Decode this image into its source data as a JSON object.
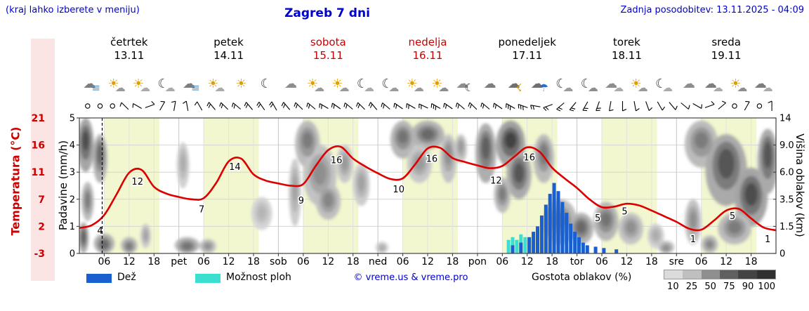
{
  "header": {
    "menu_hint": "(kraj lahko izberete v meniju)",
    "title": "Zagreb 7 dni",
    "updated": "Zadnja posodobitev: 13.11.2025 - 04:09"
  },
  "days": [
    {
      "name": "četrtek",
      "date": "13.11",
      "color": "#000000"
    },
    {
      "name": "petek",
      "date": "14.11",
      "color": "#000000"
    },
    {
      "name": "sobota",
      "date": "15.11",
      "color": "#cc0000"
    },
    {
      "name": "nedelja",
      "date": "16.11",
      "color": "#cc0000"
    },
    {
      "name": "ponedeljek",
      "date": "17.11",
      "color": "#000000"
    },
    {
      "name": "torek",
      "date": "18.11",
      "color": "#000000"
    },
    {
      "name": "sreda",
      "date": "19.11",
      "color": "#000000"
    }
  ],
  "axes": {
    "left_inner_label": "Padavine (mm/h)",
    "left_inner_ticks": [
      "0",
      "1",
      "2",
      "3",
      "4",
      "5"
    ],
    "left_outer_label": "Temperatura (°C)",
    "left_outer_ticks": [
      "-3",
      "2",
      "7",
      "11",
      "16",
      "21"
    ],
    "right_label": "Višina oblakov (km)",
    "right_ticks": [
      "0",
      "1.5",
      "3.5",
      "6.0",
      "9.0",
      "14"
    ],
    "x_hour_ticks": [
      "06",
      "12",
      "18"
    ],
    "x_day_labels": [
      "pet",
      "sob",
      "ned",
      "pon",
      "tor",
      "sre"
    ]
  },
  "legend": {
    "rain": "Dež",
    "showers": "Možnost ploh",
    "copyright": "© vreme.us & vreme.pro",
    "clouds": "Gostota oblakov (%)",
    "cloud_scale": [
      10,
      25,
      50,
      75,
      90,
      100
    ]
  },
  "colors": {
    "blue_text": "#0000cc",
    "red": "#cc0000",
    "curve": "#dd0000",
    "rain": "#1a5fd0",
    "showers": "#3adfd0",
    "day_band": "#f3f7cf",
    "temp_strip": "#fbe4e4",
    "grid": "#d4d4d4",
    "frame": "#444444"
  },
  "chart_data": {
    "type": "line",
    "title": "Zagreb 7 dni",
    "days_count": 7,
    "day_span_hours": 24,
    "daylight_band_hours": [
      6,
      19.3
    ],
    "now_line_hour": 5.5,
    "ylim_precip": [
      0,
      5
    ],
    "ylim_temp": [
      -3,
      21
    ],
    "right_axis_km_at_gridlines": [
      0,
      1.5,
      3.5,
      6.0,
      9.0,
      14
    ],
    "temperature": {
      "name": "Temperatura",
      "unit": "°C",
      "start_hour": 0,
      "step_hours": 3,
      "values": [
        1.5,
        2.0,
        3.8,
        7.5,
        11.3,
        11.8,
        8.8,
        7.6,
        7.0,
        6.6,
        6.8,
        9.5,
        13.3,
        13.8,
        11.0,
        9.9,
        9.4,
        9.0,
        9.3,
        12.5,
        15.3,
        15.9,
        13.8,
        12.4,
        11.2,
        10.2,
        10.3,
        12.8,
        15.6,
        15.7,
        13.9,
        13.2,
        12.6,
        12.1,
        12.5,
        14.2,
        15.8,
        15.0,
        12.2,
        10.3,
        8.6,
        6.6,
        5.2,
        5.3,
        5.8,
        5.5,
        4.6,
        3.6,
        2.6,
        1.4,
        1.2,
        2.8,
        4.6,
        4.9,
        3.2,
        1.6,
        1.1
      ]
    },
    "temperature_labels": [
      [
        "4",
        5,
        1.0
      ],
      [
        "12",
        14,
        9.7
      ],
      [
        "7",
        29.5,
        4.8
      ],
      [
        "14",
        37.5,
        12.3
      ],
      [
        "9",
        53.5,
        6.3
      ],
      [
        "16",
        62,
        13.5
      ],
      [
        "10",
        77,
        8.3
      ],
      [
        "16",
        85,
        13.7
      ],
      [
        "12",
        100.5,
        9.9
      ],
      [
        "16",
        108.5,
        14.0
      ],
      [
        "5",
        125,
        3.2
      ],
      [
        "5",
        131.5,
        4.4
      ],
      [
        "1",
        148,
        -0.5
      ],
      [
        "5",
        157.5,
        3.6
      ],
      [
        "1",
        166,
        -0.5
      ]
    ],
    "precipitation": {
      "unit": "mm/h",
      "rain": [
        [
          104,
          0.3
        ],
        [
          106,
          0.4
        ],
        [
          108,
          0.6
        ],
        [
          109,
          0.8
        ],
        [
          110,
          1.0
        ],
        [
          111,
          1.4
        ],
        [
          112,
          1.8
        ],
        [
          113,
          2.2
        ],
        [
          114,
          2.6
        ],
        [
          115,
          2.3
        ],
        [
          116,
          1.9
        ],
        [
          117,
          1.5
        ],
        [
          118,
          1.1
        ],
        [
          119,
          0.8
        ],
        [
          120,
          0.6
        ],
        [
          121,
          0.4
        ],
        [
          122,
          0.3
        ],
        [
          124,
          0.25
        ],
        [
          126,
          0.2
        ],
        [
          129,
          0.15
        ]
      ],
      "showers": [
        [
          103,
          0.5
        ],
        [
          104,
          0.6
        ],
        [
          105,
          0.5
        ],
        [
          106,
          0.7
        ],
        [
          107,
          0.6
        ],
        [
          108,
          0.5
        ]
      ]
    },
    "cloud_cover": {
      "unit": "altitude km, density 0-1",
      "regions": [
        [
          1.5,
          4,
          10,
          4,
          0.85
        ],
        [
          5,
          3.5,
          8,
          3,
          0.7
        ],
        [
          2,
          3,
          3.5,
          1.6,
          0.6
        ],
        [
          1,
          2.5,
          0.9,
          0.9,
          0.75
        ],
        [
          6,
          5,
          0.5,
          0.6,
          0.7
        ],
        [
          12,
          4,
          0.4,
          0.5,
          0.6
        ],
        [
          16,
          2.5,
          1,
          0.7,
          0.4
        ],
        [
          25,
          3,
          7,
          2.5,
          0.35
        ],
        [
          26,
          6,
          0.4,
          0.5,
          0.65
        ],
        [
          31,
          4,
          0.4,
          0.4,
          0.5
        ],
        [
          44,
          5,
          2.5,
          1.2,
          0.3
        ],
        [
          52,
          3,
          4.5,
          3,
          0.4
        ],
        [
          55,
          6,
          10,
          3.5,
          0.6
        ],
        [
          58,
          8,
          6,
          3,
          0.5
        ],
        [
          60,
          6,
          3.5,
          1.5,
          0.55
        ],
        [
          64,
          4,
          7,
          2,
          0.45
        ],
        [
          68,
          4,
          5,
          2,
          0.4
        ],
        [
          73,
          3,
          0.3,
          0.35,
          0.35
        ],
        [
          78,
          6,
          10.5,
          3,
          0.65
        ],
        [
          84,
          8,
          11,
          2.5,
          0.7
        ],
        [
          82,
          6,
          7,
          2,
          0.45
        ],
        [
          89,
          4,
          8,
          3,
          0.5
        ],
        [
          92,
          3,
          9,
          2,
          0.45
        ],
        [
          98,
          5,
          9,
          4,
          0.75
        ],
        [
          104,
          7,
          10,
          3.5,
          0.9
        ],
        [
          106,
          6,
          6,
          2.5,
          0.8
        ],
        [
          102,
          4,
          4,
          1.5,
          0.6
        ],
        [
          112,
          5,
          8,
          3,
          0.6
        ],
        [
          116,
          8,
          2,
          1.5,
          0.6
        ],
        [
          121,
          6,
          1.5,
          1,
          0.7
        ],
        [
          127,
          6,
          2,
          1.3,
          0.65
        ],
        [
          133,
          6,
          1.5,
          1,
          0.5
        ],
        [
          139,
          4,
          1,
          0.7,
          0.35
        ],
        [
          141.5,
          4,
          0.3,
          0.4,
          0.5
        ],
        [
          148,
          4,
          2,
          1.5,
          0.5
        ],
        [
          150,
          8,
          10,
          3.5,
          0.6
        ],
        [
          156,
          10,
          7,
          4,
          0.8
        ],
        [
          162,
          8,
          4,
          2.5,
          0.85
        ],
        [
          166,
          5,
          8,
          4,
          0.8
        ],
        [
          158,
          8,
          1.5,
          1,
          0.6
        ],
        [
          152,
          4,
          0.5,
          0.5,
          0.55
        ]
      ]
    },
    "icons": [
      [
        [
          "☁",
          "#7d7d7d"
        ],
        [
          "≡",
          "#4f8fc4"
        ]
      ],
      [
        [
          "☀",
          "#e09c00"
        ],
        [
          "☁",
          "#9a9a9a"
        ]
      ],
      [
        [
          "☀",
          "#e09c00"
        ],
        [
          "☁",
          "#ababab"
        ]
      ],
      [
        [
          "☾",
          "#3c3c3c"
        ],
        [
          "☁",
          "#ababab"
        ]
      ],
      [
        [
          "☁",
          "#7d7d7d"
        ],
        [
          "≡",
          "#4f8fc4"
        ]
      ],
      [
        [
          "☀",
          "#e09c00"
        ],
        [
          "☁",
          "#ababab"
        ]
      ],
      [
        [
          "☀",
          "#e09c00"
        ]
      ],
      [
        [
          "☾",
          "#3c3c3c"
        ]
      ],
      [
        [
          "☁",
          "#8d8d8d"
        ]
      ],
      [
        [
          "☀",
          "#e09c00"
        ],
        [
          "☁",
          "#9a9a9a"
        ]
      ],
      [
        [
          "☀",
          "#e09c00"
        ],
        [
          "☁",
          "#9a9a9a"
        ]
      ],
      [
        [
          "☾",
          "#3c3c3c"
        ],
        [
          "☁",
          "#ababab"
        ]
      ],
      [
        [
          "☾",
          "#3c3c3c"
        ],
        [
          "☁",
          "#9a9a9a"
        ]
      ],
      [
        [
          "☀",
          "#e09c00"
        ],
        [
          "☁",
          "#9a9a9a"
        ]
      ],
      [
        [
          "☀",
          "#e09c00"
        ],
        [
          "☁",
          "#8d8d8d"
        ]
      ],
      [
        [
          "☁",
          "#8d8d8d"
        ],
        [
          "☾",
          "#3c3c3c"
        ]
      ],
      [
        [
          "☁",
          "#7d7d7d"
        ]
      ],
      [
        [
          "☁",
          "#6f6f6f"
        ],
        [
          "☇",
          "#e09c00"
        ]
      ],
      [
        [
          "☁",
          "#6f6f6f"
        ],
        [
          "☂",
          "#2f6bc4"
        ]
      ],
      [
        [
          "☾",
          "#3c3c3c"
        ],
        [
          "☁",
          "#9a9a9a"
        ]
      ],
      [
        [
          "☾",
          "#3c3c3c"
        ],
        [
          "☁",
          "#8d8d8d"
        ]
      ],
      [
        [
          "☁",
          "#8d8d8d"
        ],
        [
          "☁",
          "#ababab"
        ]
      ],
      [
        [
          "☀",
          "#e09c00"
        ],
        [
          "☁",
          "#9a9a9a"
        ]
      ],
      [
        [
          "☾",
          "#3c3c3c"
        ],
        [
          "☁",
          "#ababab"
        ]
      ],
      [
        [
          "☁",
          "#8d8d8d"
        ]
      ],
      [
        [
          "☁",
          "#7d7d7d"
        ],
        [
          "☁",
          "#ababab"
        ]
      ],
      [
        [
          "☀",
          "#e09c00"
        ],
        [
          "☁",
          "#8d8d8d"
        ]
      ],
      [
        [
          "☁",
          "#7d7d7d"
        ],
        [
          "☁",
          "#ababab"
        ]
      ]
    ],
    "wind": [
      "calm",
      "calm",
      "calm",
      [
        135,
        1
      ],
      [
        150,
        1
      ],
      [
        20,
        1
      ],
      [
        60,
        1
      ],
      [
        80,
        1
      ],
      [
        100,
        1
      ],
      [
        120,
        1
      ],
      [
        130,
        2
      ],
      [
        135,
        2
      ],
      [
        140,
        2
      ],
      [
        130,
        2
      ],
      [
        125,
        2
      ],
      [
        120,
        2
      ],
      [
        130,
        2
      ],
      [
        135,
        2
      ],
      [
        140,
        2
      ],
      [
        150,
        2
      ],
      [
        145,
        2
      ],
      [
        140,
        2
      ],
      [
        135,
        2
      ],
      [
        130,
        2
      ],
      [
        140,
        2
      ],
      [
        145,
        2
      ],
      [
        150,
        2
      ],
      [
        155,
        2
      ],
      [
        150,
        3
      ],
      [
        145,
        2
      ],
      [
        140,
        2
      ],
      [
        135,
        2
      ],
      [
        140,
        2
      ],
      [
        145,
        2
      ],
      [
        150,
        3
      ],
      [
        160,
        3
      ],
      [
        170,
        2
      ],
      [
        200,
        2
      ],
      [
        220,
        2
      ],
      [
        230,
        2
      ],
      [
        240,
        2
      ],
      [
        250,
        2
      ],
      [
        260,
        1
      ],
      [
        270,
        1
      ],
      [
        280,
        1
      ],
      [
        290,
        1
      ],
      [
        300,
        1
      ],
      [
        310,
        1
      ],
      [
        320,
        1
      ],
      [
        330,
        1
      ],
      [
        20,
        1
      ],
      [
        40,
        1
      ],
      "calm",
      [
        60,
        1
      ],
      "calm",
      [
        90,
        1
      ]
    ]
  }
}
